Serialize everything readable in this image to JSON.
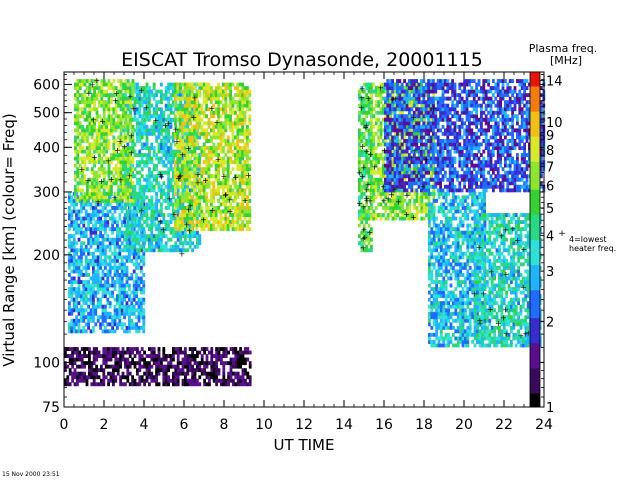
{
  "chart_data": {
    "type": "heatmap",
    "title": "EISCAT Tromso Dynasonde,  20001115",
    "xlabel": "UT TIME",
    "ylabel": "Virtual Range [km]   (colour= Freq)",
    "x_ticks": [
      "0",
      "2",
      "4",
      "6",
      "8",
      "10",
      "12",
      "14",
      "16",
      "18",
      "20",
      "22",
      "24"
    ],
    "x_range": [
      0,
      24
    ],
    "y_ticks": [
      {
        "value": 75,
        "label": "75"
      },
      {
        "value": 100,
        "label": "100"
      },
      {
        "value": 200,
        "label": "200"
      },
      {
        "value": 300,
        "label": "300"
      },
      {
        "value": 400,
        "label": "400"
      },
      {
        "value": 500,
        "label": "500"
      },
      {
        "value": 600,
        "label": "600"
      }
    ],
    "y_range": [
      75,
      650
    ],
    "y_scale": "log",
    "colorbar": {
      "title_line1": "Plasma freq.",
      "title_line2": "[MHz]",
      "ticks": [
        "14",
        "10",
        "9",
        "8",
        "7",
        "6",
        "5",
        "4",
        "3",
        "2",
        "1"
      ],
      "tick_values": [
        14,
        10,
        9,
        8,
        7,
        6,
        5,
        4,
        3,
        2,
        1
      ],
      "scale": "log",
      "range": [
        1,
        15
      ],
      "heater_note_line1": "4=lowest",
      "heater_note_line2": "heater freq.",
      "heater_marker": "+",
      "colors": [
        "#000000",
        "#3a0a5a",
        "#5a0f8f",
        "#3a2bd0",
        "#1f6cff",
        "#1fb4ff",
        "#2ee0d6",
        "#28d882",
        "#34d233",
        "#8ee52d",
        "#d8e82a",
        "#f2bf14",
        "#f57a0c",
        "#e8140a"
      ]
    },
    "observation_gaps": [
      [
        9.3,
        14.7
      ]
    ],
    "regions": [
      {
        "x": [
          0,
          9.3
        ],
        "y": [
          85,
          110
        ],
        "freq_mhz": 1.2
      },
      {
        "x": [
          0.2,
          4.0
        ],
        "y": [
          120,
          300
        ],
        "freq_mhz": 2.8
      },
      {
        "x": [
          3.0,
          6.8
        ],
        "y": [
          200,
          600
        ],
        "freq_mhz": 3.5
      },
      {
        "x": [
          0.5,
          3.5
        ],
        "y": [
          280,
          620
        ],
        "freq_mhz": 6.0
      },
      {
        "x": [
          5.5,
          9.3
        ],
        "y": [
          230,
          600
        ],
        "freq_mhz": 7.0
      },
      {
        "x": [
          14.7,
          15.3
        ],
        "y": [
          200,
          600
        ],
        "freq_mhz": 5.0
      },
      {
        "x": [
          15.3,
          18.5
        ],
        "y": [
          250,
          600
        ],
        "freq_mhz": 6.0
      },
      {
        "x": [
          18.2,
          21.0
        ],
        "y": [
          110,
          300
        ],
        "freq_mhz": 3.0
      },
      {
        "x": [
          20.5,
          23.8
        ],
        "y": [
          110,
          260
        ],
        "freq_mhz": 3.5
      },
      {
        "x": [
          16.0,
          24.0
        ],
        "y": [
          300,
          620
        ],
        "freq_mhz": 2.0
      }
    ]
  },
  "footer": {
    "timestamp": "15 Nov 2000 23:51"
  }
}
